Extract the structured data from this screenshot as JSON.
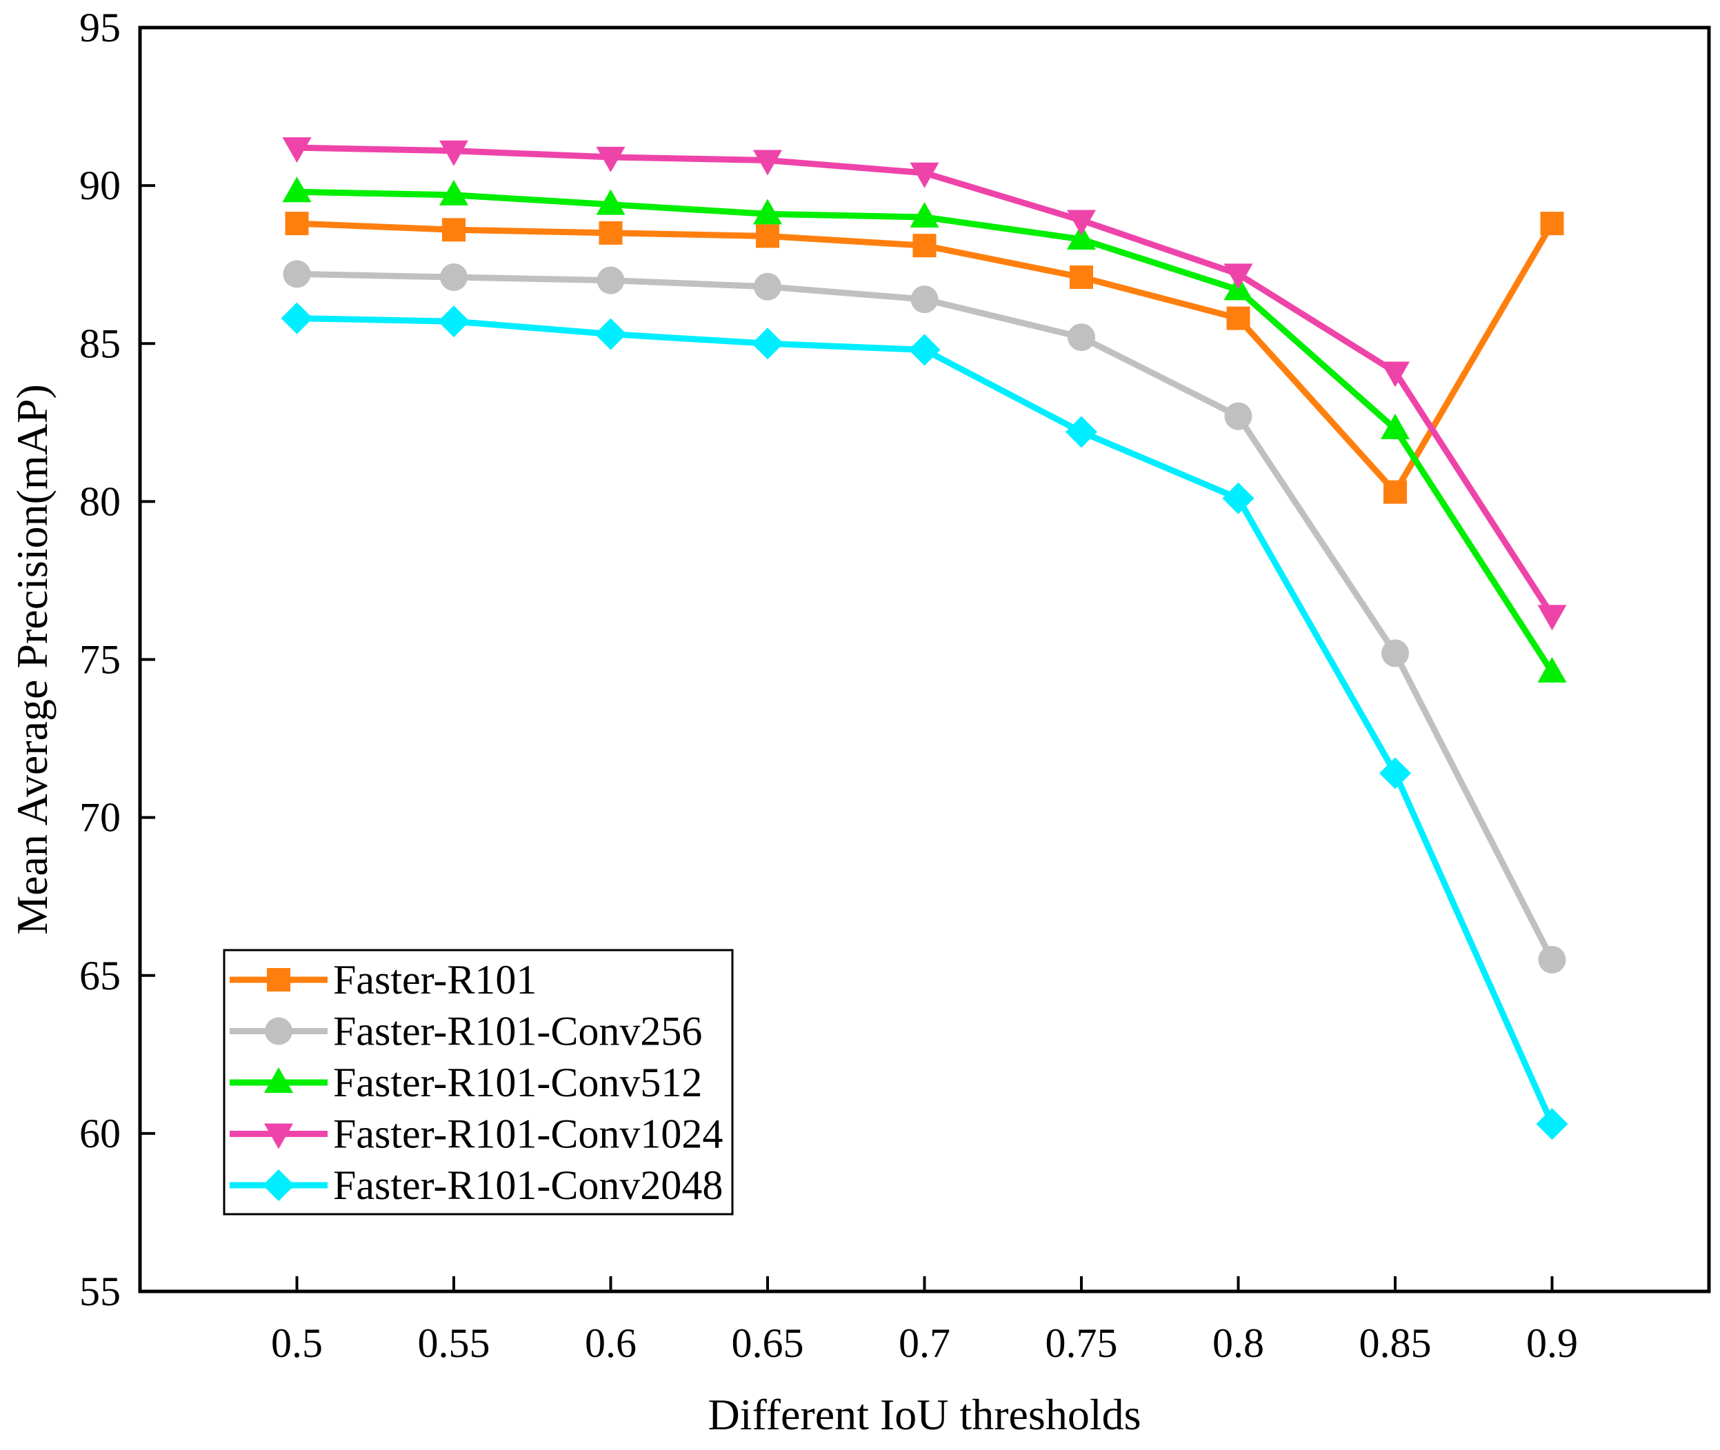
{
  "chart_data": {
    "type": "line",
    "title": "",
    "xlabel": "Different IoU thresholds",
    "ylabel": "Mean Average Precision(mAP)",
    "x": [
      0.5,
      0.55,
      0.6,
      0.65,
      0.7,
      0.75,
      0.8,
      0.85,
      0.9
    ],
    "x_tick_labels": [
      "0.5",
      "0.55",
      "0.6",
      "0.65",
      "0.7",
      "0.75",
      "0.8",
      "0.85",
      "0.9"
    ],
    "xlim": [
      0.45,
      0.95
    ],
    "ylim": [
      55,
      95
    ],
    "y_ticks": [
      55,
      60,
      65,
      70,
      75,
      80,
      85,
      90,
      95
    ],
    "y_tick_labels": [
      "55",
      "60",
      "65",
      "70",
      "75",
      "80",
      "85",
      "90",
      "95"
    ],
    "grid": false,
    "legend_position": "bottom-left",
    "series": [
      {
        "name": "Faster-R101",
        "color": "#ff7f0e",
        "marker": "square",
        "values": [
          88.8,
          88.6,
          88.5,
          88.4,
          88.1,
          87.1,
          85.8,
          80.3,
          88.8
        ]
      },
      {
        "name": "Faster-R101-Conv256",
        "color": "#c0c0c0",
        "marker": "circle",
        "values": [
          87.2,
          87.1,
          87.0,
          86.8,
          86.4,
          85.2,
          82.7,
          75.2,
          65.5
        ]
      },
      {
        "name": "Faster-R101-Conv512",
        "color": "#00ee00",
        "marker": "triangle-up",
        "values": [
          89.8,
          89.7,
          89.4,
          89.1,
          89.0,
          88.3,
          86.7,
          82.3,
          74.6
        ]
      },
      {
        "name": "Faster-R101-Conv1024",
        "color": "#ee44aa",
        "marker": "triangle-down",
        "values": [
          91.2,
          91.1,
          90.9,
          90.8,
          90.4,
          88.9,
          87.2,
          84.1,
          76.4
        ]
      },
      {
        "name": "Faster-R101-Conv2048",
        "color": "#00eeff",
        "marker": "diamond",
        "values": [
          85.8,
          85.7,
          85.3,
          85.0,
          84.8,
          82.2,
          80.1,
          71.4,
          60.3
        ]
      }
    ]
  }
}
